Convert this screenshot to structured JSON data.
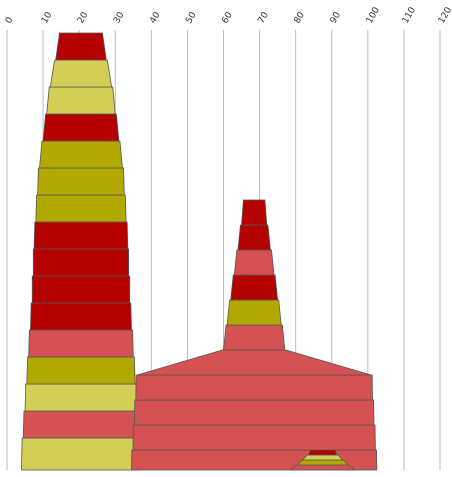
{
  "chart_data": {
    "type": "area",
    "orientation": "vertical",
    "title": "",
    "xlabel": "",
    "ylabel": "",
    "x_axis": {
      "position": "top",
      "range": [
        0,
        120
      ],
      "ticks": [
        0,
        10,
        20,
        30,
        40,
        50,
        60,
        70,
        80,
        90,
        100,
        110,
        120
      ],
      "tick_labels": [
        "0",
        "10",
        "20",
        "30",
        "40",
        "50",
        "60",
        "70",
        "80",
        "90",
        "100",
        "110",
        "120"
      ],
      "label_rotation": "-60deg"
    },
    "grid": "vertical",
    "legend": "none",
    "series_colors": {
      "dark_red": "#b50000",
      "salmon": "#d45252",
      "olive": "#b1a900",
      "yellow_green": "#d2ce56",
      "edge": "#555555"
    },
    "stacks": [
      {
        "name": "",
        "center": 20.5,
        "levels": [
          {
            "half_width": 16.5,
            "color": "yellow_green"
          },
          {
            "half_width": 16.0,
            "color": "salmon"
          },
          {
            "half_width": 15.5,
            "color": "yellow_green"
          },
          {
            "half_width": 15.0,
            "color": "olive"
          },
          {
            "half_width": 14.5,
            "color": "salmon"
          },
          {
            "half_width": 14.0,
            "color": "dark_red"
          },
          {
            "half_width": 13.5,
            "color": "dark_red"
          },
          {
            "half_width": 13.2,
            "color": "dark_red"
          },
          {
            "half_width": 13.0,
            "color": "dark_red"
          },
          {
            "half_width": 12.5,
            "color": "olive"
          },
          {
            "half_width": 12.0,
            "color": "olive"
          },
          {
            "half_width": 11.5,
            "color": "olive"
          },
          {
            "half_width": 10.5,
            "color": "dark_red"
          },
          {
            "half_width": 9.5,
            "color": "yellow_green"
          },
          {
            "half_width": 8.5,
            "color": "yellow_green"
          },
          {
            "half_width": 7.0,
            "color": "dark_red"
          }
        ]
      },
      {
        "name": "",
        "center": 68.5,
        "levels": [
          {
            "half_width": 34.0,
            "color": "salmon"
          },
          {
            "half_width": 33.6,
            "color": "salmon"
          },
          {
            "half_width": 33.2,
            "color": "salmon"
          },
          {
            "half_width": 32.8,
            "color": "salmon"
          },
          {
            "half_width": 32.4,
            "color": "salmon"
          },
          {
            "half_width": 8.5,
            "color": "salmon"
          },
          {
            "half_width": 7.5,
            "color": "olive"
          },
          {
            "half_width": 6.5,
            "color": "dark_red"
          },
          {
            "half_width": 5.5,
            "color": "salmon"
          },
          {
            "half_width": 4.5,
            "color": "dark_red"
          },
          {
            "half_width": 3.5,
            "color": "dark_red"
          }
        ]
      },
      {
        "name": "",
        "center": 87.5,
        "levels": [
          {
            "half_width": 9.0,
            "color": "salmon"
          },
          {
            "half_width": 7.0,
            "color": "olive"
          },
          {
            "half_width": 5.5,
            "color": "yellow_green"
          },
          {
            "half_width": 4.0,
            "color": "dark_red"
          }
        ]
      }
    ]
  }
}
